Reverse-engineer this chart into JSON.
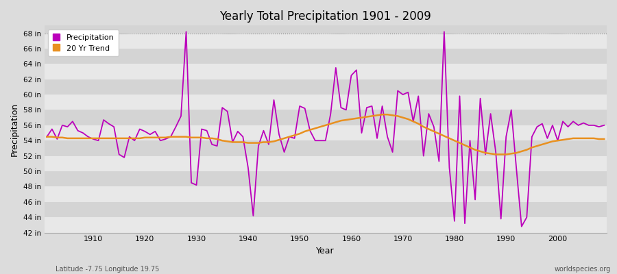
{
  "title": "Yearly Total Precipitation 1901 - 2009",
  "xlabel": "Year",
  "ylabel": "Precipitation",
  "footnote_left": "Latitude -7.75 Longitude 19.75",
  "footnote_right": "worldspecies.org",
  "ylim": [
    42,
    69
  ],
  "xlim": [
    1900.5,
    2009.5
  ],
  "yticks": [
    42,
    44,
    46,
    48,
    50,
    52,
    54,
    56,
    58,
    60,
    62,
    64,
    66,
    68
  ],
  "xticks": [
    1910,
    1920,
    1930,
    1940,
    1950,
    1960,
    1970,
    1980,
    1990,
    2000
  ],
  "precip_color": "#bb00bb",
  "trend_color": "#e89020",
  "bg_color": "#dcdcdc",
  "plot_bg_outer": "#dcdcdc",
  "band_light": "#e8e8e8",
  "band_dark": "#d4d4d4",
  "legend_precip": "Precipitation",
  "legend_trend": "20 Yr Trend",
  "years": [
    1901,
    1902,
    1903,
    1904,
    1905,
    1906,
    1907,
    1908,
    1909,
    1910,
    1911,
    1912,
    1913,
    1914,
    1915,
    1916,
    1917,
    1918,
    1919,
    1920,
    1921,
    1922,
    1923,
    1924,
    1925,
    1926,
    1927,
    1928,
    1929,
    1930,
    1931,
    1932,
    1933,
    1934,
    1935,
    1936,
    1937,
    1938,
    1939,
    1940,
    1941,
    1942,
    1943,
    1944,
    1945,
    1946,
    1947,
    1948,
    1949,
    1950,
    1951,
    1952,
    1953,
    1954,
    1955,
    1956,
    1957,
    1958,
    1959,
    1960,
    1961,
    1962,
    1963,
    1964,
    1965,
    1966,
    1967,
    1968,
    1969,
    1970,
    1971,
    1972,
    1973,
    1974,
    1975,
    1976,
    1977,
    1978,
    1979,
    1980,
    1981,
    1982,
    1983,
    1984,
    1985,
    1986,
    1987,
    1988,
    1989,
    1990,
    1991,
    1992,
    1993,
    1994,
    1995,
    1996,
    1997,
    1998,
    1999,
    2000,
    2001,
    2002,
    2003,
    2004,
    2005,
    2006,
    2007,
    2008,
    2009
  ],
  "precip": [
    54.5,
    55.5,
    54.2,
    56.0,
    55.8,
    56.5,
    55.3,
    55.0,
    54.5,
    54.2,
    54.0,
    56.7,
    56.2,
    55.8,
    52.2,
    51.8,
    54.5,
    54.0,
    55.5,
    55.2,
    54.8,
    55.2,
    54.0,
    54.2,
    54.5,
    55.8,
    57.2,
    68.2,
    48.5,
    48.2,
    55.5,
    55.3,
    53.5,
    53.3,
    58.3,
    57.8,
    53.8,
    55.2,
    54.5,
    50.5,
    44.2,
    53.3,
    55.3,
    53.5,
    59.3,
    54.8,
    52.5,
    54.5,
    54.3,
    58.5,
    58.2,
    55.3,
    54.0,
    54.0,
    54.0,
    57.5,
    63.5,
    58.3,
    58.0,
    62.5,
    63.2,
    55.0,
    58.3,
    58.5,
    54.3,
    58.5,
    54.5,
    52.5,
    60.5,
    60.0,
    60.3,
    56.5,
    59.8,
    52.0,
    57.5,
    55.8,
    51.3,
    68.2,
    50.5,
    43.5,
    59.8,
    43.2,
    54.0,
    46.3,
    59.5,
    52.2,
    57.5,
    52.5,
    43.8,
    54.5,
    58.0,
    50.3,
    42.8,
    44.0,
    54.5,
    55.8,
    56.2,
    54.3,
    56.0,
    54.0,
    56.5,
    55.8,
    56.5,
    56.0,
    56.3,
    56.0,
    56.0,
    55.8,
    56.0
  ],
  "trend": [
    54.5,
    54.5,
    54.4,
    54.4,
    54.3,
    54.3,
    54.3,
    54.3,
    54.3,
    54.3,
    54.3,
    54.3,
    54.3,
    54.3,
    54.3,
    54.3,
    54.3,
    54.3,
    54.3,
    54.4,
    54.4,
    54.4,
    54.4,
    54.4,
    54.5,
    54.5,
    54.5,
    54.5,
    54.4,
    54.4,
    54.4,
    54.3,
    54.3,
    54.2,
    54.0,
    53.9,
    53.8,
    53.8,
    53.8,
    53.7,
    53.7,
    53.7,
    53.8,
    53.8,
    53.9,
    54.1,
    54.3,
    54.5,
    54.7,
    54.9,
    55.2,
    55.4,
    55.6,
    55.8,
    56.0,
    56.2,
    56.4,
    56.6,
    56.7,
    56.8,
    56.9,
    57.0,
    57.1,
    57.2,
    57.3,
    57.4,
    57.4,
    57.3,
    57.2,
    57.0,
    56.8,
    56.5,
    56.2,
    55.8,
    55.5,
    55.2,
    54.9,
    54.6,
    54.3,
    54.0,
    53.7,
    53.4,
    53.1,
    52.8,
    52.6,
    52.4,
    52.3,
    52.2,
    52.2,
    52.2,
    52.3,
    52.4,
    52.6,
    52.8,
    53.1,
    53.3,
    53.5,
    53.7,
    53.9,
    54.0,
    54.1,
    54.2,
    54.3,
    54.3,
    54.3,
    54.3,
    54.3,
    54.2,
    54.2
  ]
}
